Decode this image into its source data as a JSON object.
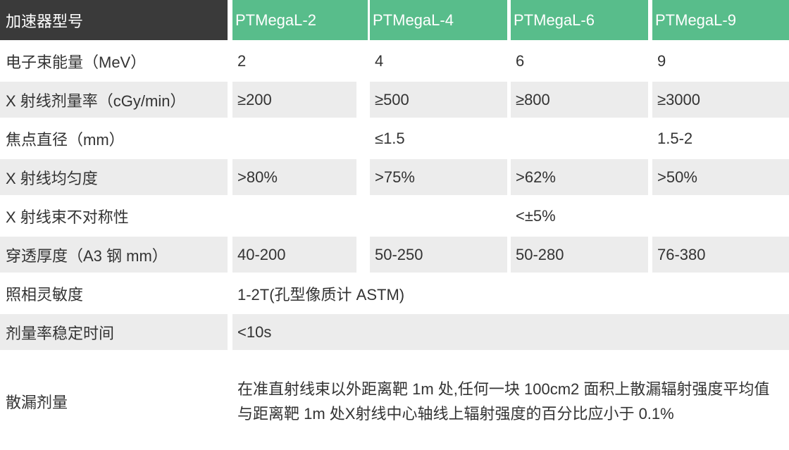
{
  "colors": {
    "header_dark_bg": "#3a3a3a",
    "header_green_bg": "#58bd8b",
    "shaded_row_bg": "#ececec",
    "row_bg": "#ffffff",
    "header_text": "#ffffff",
    "body_text": "#333333"
  },
  "table": {
    "header": {
      "label": "加速器型号",
      "columns": [
        "PTMegaL-2",
        "PTMegaL-4",
        "PTMegaL-6",
        "PTMegaL-9"
      ]
    },
    "rows": [
      {
        "label": "电子束能量（MeV）",
        "values": [
          "2",
          "4",
          "6",
          "9"
        ],
        "shaded": false
      },
      {
        "label": "X 射线剂量率（cGy/min）",
        "values": [
          "≥200",
          "≥500",
          "≥800",
          "≥3000"
        ],
        "shaded": true
      },
      {
        "label": "焦点直径（mm）",
        "values": [
          "",
          "≤1.5",
          "",
          "1.5-2"
        ],
        "shaded": false
      },
      {
        "label": "X 射线均匀度",
        "values": [
          ">80%",
          ">75%",
          ">62%",
          ">50%"
        ],
        "shaded": true
      },
      {
        "label": "X 射线束不对称性",
        "values": [
          "",
          "",
          "<±5%",
          ""
        ],
        "shaded": false
      },
      {
        "label": "穿透厚度（A3 钢 mm）",
        "values": [
          "40-200",
          "50-250",
          "50-280",
          "76-380"
        ],
        "shaded": true
      }
    ],
    "span_rows": [
      {
        "label": "照相灵敏度",
        "value": "1-2T(孔型像质计 ASTM)",
        "shaded": false
      },
      {
        "label": "剂量率稳定时间",
        "value": "<10s",
        "shaded": true
      },
      {
        "label": "散漏剂量",
        "value": "在准直射线束以外距离靶 1m 处,任何一块 100cm2 面积上散漏辐射强度平均值与距离靶 1m 处X射线中心轴线上辐射强度的百分比应小于 0.1%",
        "shaded": false
      }
    ]
  }
}
